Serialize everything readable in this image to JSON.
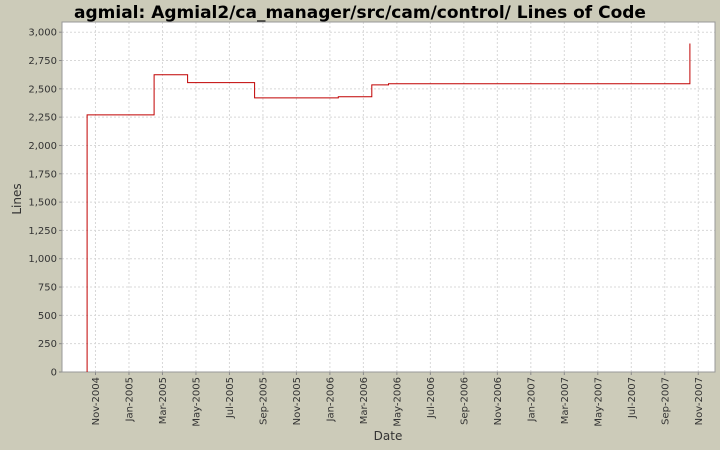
{
  "chart_data": {
    "type": "line",
    "title": "agmial: Agmial2/ca_manager/src/cam/control/ Lines of Code",
    "x_label": "Date",
    "y_label": "Lines",
    "series": [
      {
        "name": "Lines",
        "color": "#c00000",
        "x": [
          "2004-10",
          "2004-10",
          "2005-02",
          "2005-02",
          "2005-04",
          "2005-04",
          "2005-08",
          "2005-08",
          "2006-01",
          "2006-01",
          "2006-03",
          "2006-03",
          "2006-04",
          "2006-04",
          "2007-10",
          "2007-10"
        ],
        "values": [
          0,
          2270,
          2270,
          2625,
          2625,
          2555,
          2555,
          2420,
          2420,
          2430,
          2430,
          2535,
          2535,
          2545,
          2545,
          2900
        ]
      }
    ],
    "xlim": [
      "2004-09",
      "2007-12"
    ],
    "xticks": [
      {
        "value": "2004-11",
        "label": "Nov-2004"
      },
      {
        "value": "2005-01",
        "label": "Jan-2005"
      },
      {
        "value": "2005-03",
        "label": "Mar-2005"
      },
      {
        "value": "2005-05",
        "label": "May-2005"
      },
      {
        "value": "2005-07",
        "label": "Jul-2005"
      },
      {
        "value": "2005-09",
        "label": "Sep-2005"
      },
      {
        "value": "2005-11",
        "label": "Nov-2005"
      },
      {
        "value": "2006-01",
        "label": "Jan-2006"
      },
      {
        "value": "2006-03",
        "label": "Mar-2006"
      },
      {
        "value": "2006-05",
        "label": "May-2006"
      },
      {
        "value": "2006-07",
        "label": "Jul-2006"
      },
      {
        "value": "2006-09",
        "label": "Sep-2006"
      },
      {
        "value": "2006-11",
        "label": "Nov-2006"
      },
      {
        "value": "2007-01",
        "label": "Jan-2007"
      },
      {
        "value": "2007-03",
        "label": "Mar-2007"
      },
      {
        "value": "2007-05",
        "label": "May-2007"
      },
      {
        "value": "2007-07",
        "label": "Jul-2007"
      },
      {
        "value": "2007-09",
        "label": "Sep-2007"
      },
      {
        "value": "2007-11",
        "label": "Nov-2007"
      }
    ],
    "ylim": [
      0,
      3090
    ],
    "yticks": [
      0,
      250,
      500,
      750,
      {
        "value": 1000,
        "label": "1,000"
      },
      {
        "value": 1250,
        "label": "1,250"
      },
      {
        "value": 1500,
        "label": "1,500"
      },
      {
        "value": 1750,
        "label": "1,750"
      },
      {
        "value": 2000,
        "label": "2,000"
      },
      {
        "value": 2250,
        "label": "2,250"
      },
      {
        "value": 2500,
        "label": "2,500"
      },
      {
        "value": 2750,
        "label": "2,750"
      },
      {
        "value": 3000,
        "label": "3,000"
      }
    ],
    "grid": true
  }
}
